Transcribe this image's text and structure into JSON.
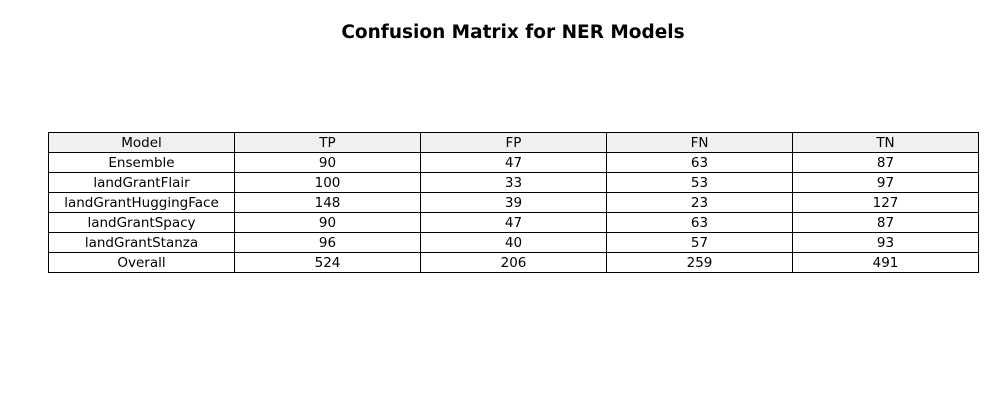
{
  "chart_data": {
    "type": "table",
    "title": "Confusion Matrix for NER Models",
    "columns": [
      "Model",
      "TP",
      "FP",
      "FN",
      "TN"
    ],
    "rows": [
      [
        "Ensemble",
        "90",
        "47",
        "63",
        "87"
      ],
      [
        "landGrantFlair",
        "100",
        "33",
        "53",
        "97"
      ],
      [
        "landGrantHuggingFace",
        "148",
        "39",
        "23",
        "127"
      ],
      [
        "landGrantSpacy",
        "90",
        "47",
        "63",
        "87"
      ],
      [
        "landGrantStanza",
        "96",
        "40",
        "57",
        "93"
      ],
      [
        "Overall",
        "524",
        "206",
        "259",
        "491"
      ]
    ],
    "header_bg": "#f0f0f0",
    "border_color": "#000000"
  }
}
